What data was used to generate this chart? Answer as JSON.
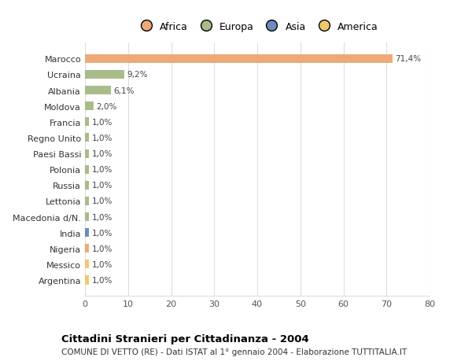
{
  "countries": [
    "Marocco",
    "Ucraina",
    "Albania",
    "Moldova",
    "Francia",
    "Regno Unito",
    "Paesi Bassi",
    "Polonia",
    "Russia",
    "Lettonia",
    "Macedonia d/N.",
    "India",
    "Nigeria",
    "Messico",
    "Argentina"
  ],
  "values": [
    71.4,
    9.2,
    6.1,
    2.0,
    1.0,
    1.0,
    1.0,
    1.0,
    1.0,
    1.0,
    1.0,
    1.0,
    1.0,
    1.0,
    1.0
  ],
  "labels": [
    "71,4%",
    "9,2%",
    "6,1%",
    "2,0%",
    "1,0%",
    "1,0%",
    "1,0%",
    "1,0%",
    "1,0%",
    "1,0%",
    "1,0%",
    "1,0%",
    "1,0%",
    "1,0%",
    "1,0%"
  ],
  "continents": [
    "Africa",
    "Europa",
    "Europa",
    "Europa",
    "Europa",
    "Europa",
    "Europa",
    "Europa",
    "Europa",
    "Europa",
    "Europa",
    "Asia",
    "Africa",
    "America",
    "America"
  ],
  "continent_colors": {
    "Africa": "#EDAA78",
    "Europa": "#A8BC8A",
    "Asia": "#6B8CBE",
    "America": "#F0C96B"
  },
  "legend_items": [
    "Africa",
    "Europa",
    "Asia",
    "America"
  ],
  "legend_colors": [
    "#EDAA78",
    "#A8BC8A",
    "#6B8CBE",
    "#F0C96B"
  ],
  "title": "Cittadini Stranieri per Cittadinanza - 2004",
  "subtitle": "COMUNE DI VETTO (RE) - Dati ISTAT al 1° gennaio 2004 - Elaborazione TUTTITALIA.IT",
  "xlim": [
    0,
    80
  ],
  "xticks": [
    0,
    10,
    20,
    30,
    40,
    50,
    60,
    70,
    80
  ],
  "background_color": "#ffffff",
  "grid_color": "#dddddd",
  "bar_height": 0.55
}
